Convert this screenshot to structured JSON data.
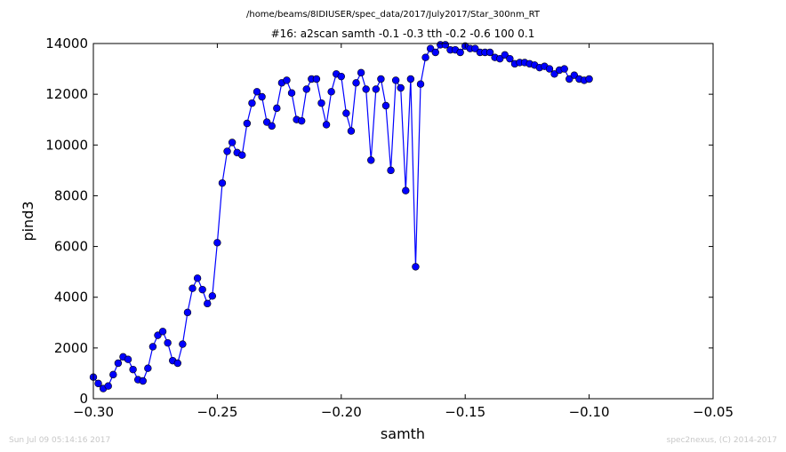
{
  "chart_data": {
    "type": "line",
    "suptitle": "/home/beams/8IDIUSER/spec_data/2017/July2017/Star_300nm_RT",
    "title": "#16: a2scan  samth -0.1 -0.3  tth -0.2 -0.6  100 0.1",
    "xlabel": "samth",
    "ylabel": "pind3",
    "xlim": [
      -0.3,
      -0.05
    ],
    "ylim": [
      0,
      14000
    ],
    "xticks": [
      -0.3,
      -0.25,
      -0.2,
      -0.15,
      -0.1,
      -0.05
    ],
    "xtick_labels": [
      "−0.30",
      "−0.25",
      "−0.20",
      "−0.15",
      "−0.10",
      "−0.05"
    ],
    "yticks": [
      0,
      2000,
      4000,
      6000,
      8000,
      10000,
      12000,
      14000
    ],
    "ytick_labels": [
      "0",
      "2000",
      "4000",
      "6000",
      "8000",
      "10000",
      "12000",
      "14000"
    ],
    "grid": false,
    "series": [
      {
        "color": "#0000ff",
        "x": [
          -0.3,
          -0.298,
          -0.296,
          -0.294,
          -0.292,
          -0.29,
          -0.288,
          -0.286,
          -0.284,
          -0.282,
          -0.28,
          -0.278,
          -0.276,
          -0.274,
          -0.272,
          -0.27,
          -0.268,
          -0.266,
          -0.264,
          -0.262,
          -0.26,
          -0.258,
          -0.256,
          -0.254,
          -0.252,
          -0.25,
          -0.248,
          -0.246,
          -0.244,
          -0.242,
          -0.24,
          -0.238,
          -0.236,
          -0.234,
          -0.232,
          -0.23,
          -0.228,
          -0.226,
          -0.224,
          -0.222,
          -0.22,
          -0.218,
          -0.216,
          -0.214,
          -0.212,
          -0.21,
          -0.208,
          -0.206,
          -0.204,
          -0.202,
          -0.2,
          -0.198,
          -0.196,
          -0.194,
          -0.192,
          -0.19,
          -0.188,
          -0.186,
          -0.184,
          -0.182,
          -0.18,
          -0.178,
          -0.176,
          -0.174,
          -0.172,
          -0.17,
          -0.168,
          -0.166,
          -0.164,
          -0.162,
          -0.16,
          -0.158,
          -0.156,
          -0.154,
          -0.152,
          -0.15,
          -0.148,
          -0.146,
          -0.144,
          -0.142,
          -0.14,
          -0.138,
          -0.136,
          -0.134,
          -0.132,
          -0.13,
          -0.128,
          -0.126,
          -0.124,
          -0.122,
          -0.12,
          -0.118,
          -0.116,
          -0.114,
          -0.112,
          -0.11,
          -0.108,
          -0.106,
          -0.104,
          -0.102,
          -0.1
        ],
        "y": [
          850,
          600,
          400,
          500,
          950,
          1400,
          1650,
          1550,
          1150,
          750,
          700,
          1200,
          2050,
          2500,
          2650,
          2200,
          1500,
          1400,
          2150,
          3400,
          4350,
          4750,
          4300,
          3750,
          4050,
          6150,
          8500,
          9750,
          10100,
          9700,
          9600,
          10850,
          11650,
          12100,
          11900,
          10900,
          10750,
          11450,
          12450,
          12550,
          12050,
          11000,
          10950,
          12200,
          12600,
          12600,
          11650,
          10800,
          12100,
          12800,
          12700,
          11250,
          10550,
          12450,
          12850,
          12200,
          9400,
          12200,
          12600,
          11550,
          9000,
          12550,
          12250,
          8200,
          12600,
          5200,
          12400,
          13450,
          13800,
          13650,
          13950,
          13950,
          13750,
          13750,
          13650,
          13900,
          13800,
          13800,
          13650,
          13650,
          13650,
          13450,
          13400,
          13550,
          13400,
          13200,
          13250,
          13250,
          13200,
          13150,
          13050,
          13100,
          13000,
          12800,
          12950,
          13000,
          12600,
          12750,
          12600,
          12550,
          12600
        ]
      }
    ]
  },
  "footer": {
    "timestamp": "Sun Jul 09 05:14:16 2017",
    "credit": "spec2nexus, (C) 2014-2017"
  }
}
